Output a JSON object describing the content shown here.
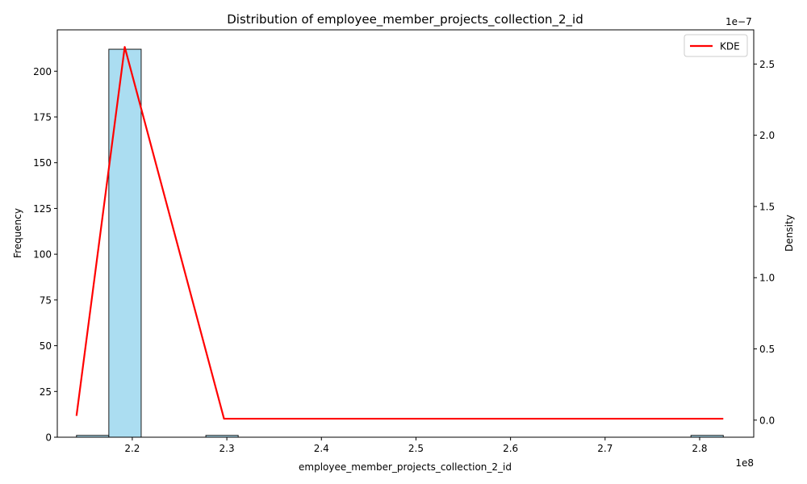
{
  "chart_data": {
    "type": "bar",
    "title": "Distribution of employee_member_projects_collection_2_id",
    "xlabel": "employee_member_projects_collection_2_id",
    "ylabel": "Frequency",
    "y2label": "Density",
    "x_offset_label": "1e8",
    "y2_offset_label": "1e−7",
    "xlim": [
      2.1207,
      2.8572
    ],
    "xticks": [
      "2.2",
      "2.3",
      "2.4",
      "2.5",
      "2.6",
      "2.7",
      "2.8"
    ],
    "xtick_values": [
      2.2,
      2.3,
      2.4,
      2.5,
      2.6,
      2.7,
      2.8
    ],
    "ylim": [
      0,
      222.6
    ],
    "yticks": [
      "0",
      "25",
      "50",
      "75",
      "100",
      "125",
      "150",
      "175",
      "200"
    ],
    "ytick_values": [
      0,
      25,
      50,
      75,
      100,
      125,
      150,
      175,
      200
    ],
    "y2lim": [
      -0.12,
      2.74
    ],
    "y2ticks": [
      "0.0",
      "0.5",
      "1.0",
      "1.5",
      "2.0",
      "2.5"
    ],
    "y2tick_values": [
      0,
      0.5,
      1.0,
      1.5,
      2.0,
      2.5
    ],
    "histogram": {
      "bin_edges": [
        2.141,
        2.1752,
        2.2094,
        2.2436,
        2.2778,
        2.312,
        2.3462,
        2.3804,
        2.4146,
        2.4488,
        2.483,
        2.5172,
        2.5514,
        2.5856,
        2.6198,
        2.654,
        2.6882,
        2.7224,
        2.7566,
        2.7908,
        2.825
      ],
      "counts": [
        1,
        212,
        0,
        0,
        1,
        0,
        0,
        0,
        0,
        0,
        0,
        0,
        0,
        0,
        0,
        0,
        0,
        0,
        0,
        1
      ]
    },
    "series": [
      {
        "name": "KDE",
        "x": [
          2.141,
          2.192,
          2.297,
          2.825
        ],
        "y": [
          0.03,
          2.62,
          0.01,
          0.01
        ]
      }
    ],
    "legend_position": "top-right",
    "grid": false,
    "colors": {
      "bar_fill": "#87ceeb",
      "bar_edge": "#1a1a1a",
      "kde": "#ff0000"
    }
  }
}
